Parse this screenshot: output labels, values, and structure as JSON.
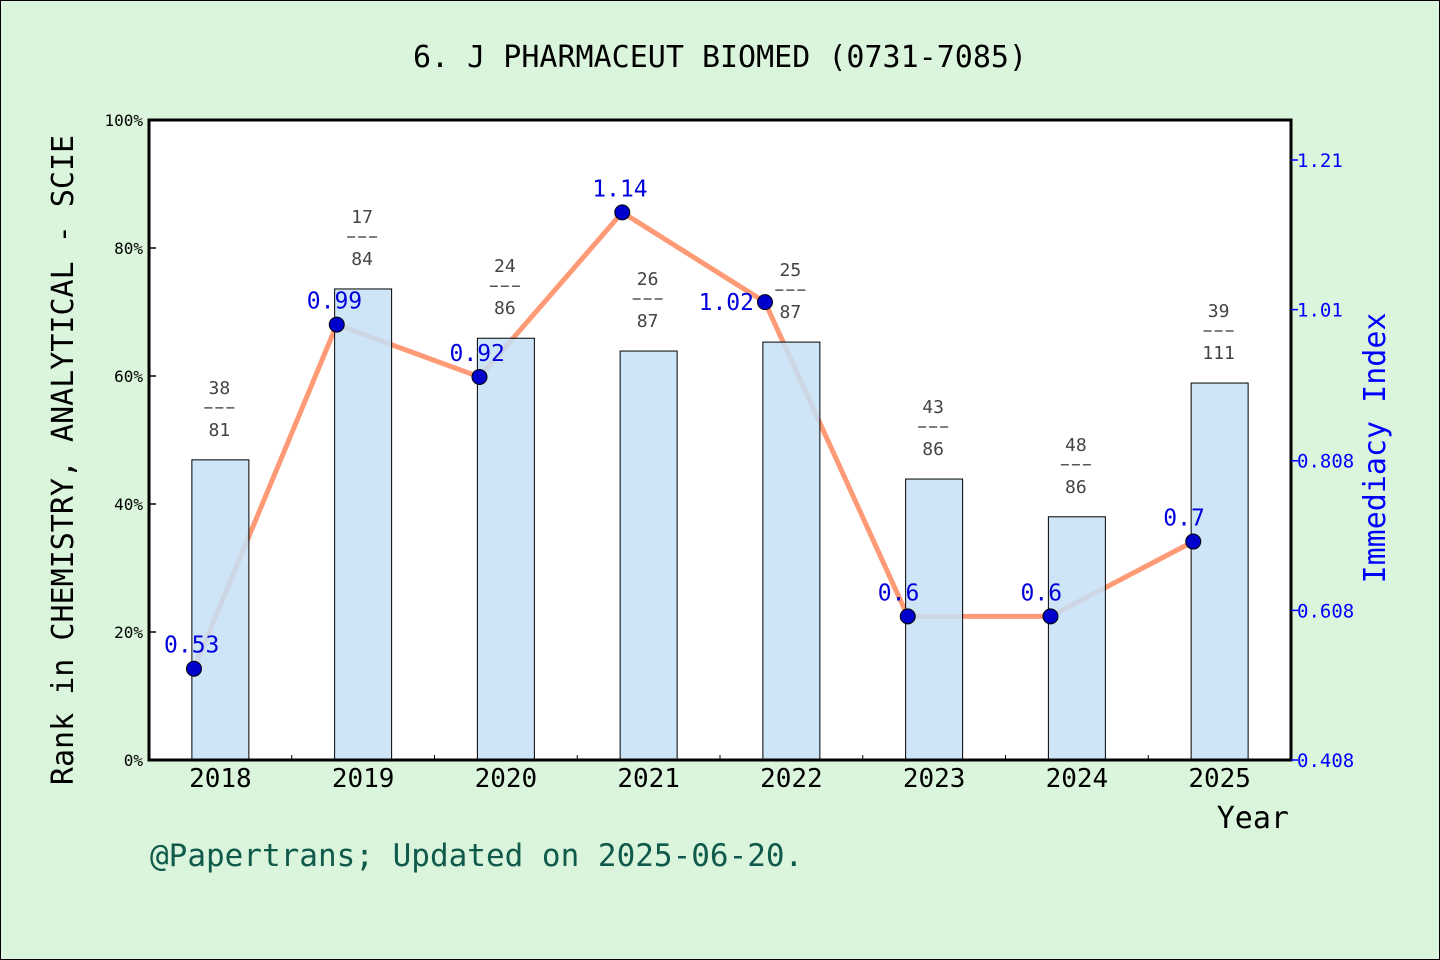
{
  "chart_data": {
    "type": "bar+line",
    "title": "6. J PHARMACEUT BIOMED (0731-7085)",
    "xlabel": "Year",
    "ylabel": "Rank in CHEMISTRY, ANALYTICAL - SCIE",
    "ylabel_right": "Immediacy Index",
    "categories": [
      "2018",
      "2019",
      "2020",
      "2021",
      "2022",
      "2023",
      "2024",
      "2025"
    ],
    "ylim": [
      0,
      100
    ],
    "yticks": [
      "0%",
      "20%",
      "40%",
      "60%",
      "80%",
      "100%"
    ],
    "ylim_right": [
      0.408,
      1.21
    ],
    "yticks_right": [
      "0.408",
      "0.608",
      "0.808",
      "1.01",
      "1.21"
    ],
    "bars": {
      "values_percent": [
        46.9,
        73.6,
        65.9,
        63.9,
        65.3,
        43.9,
        38.0,
        58.9
      ],
      "ranks": [
        "38",
        "17",
        "24",
        "26",
        "25",
        "43",
        "48",
        "39"
      ],
      "totals": [
        "81",
        "84",
        "86",
        "87",
        "87",
        "86",
        "86",
        "111"
      ],
      "color": "#c5e0f7"
    },
    "line": {
      "values": [
        0.53,
        0.99,
        0.92,
        1.14,
        1.02,
        0.6,
        0.6,
        0.7
      ],
      "labels": [
        "0.53",
        "0.99",
        "0.92",
        "1.14",
        "1.02",
        "0.6",
        "0.6",
        "0.7"
      ],
      "color": "#ff9a76",
      "marker_color": "#0000cc"
    },
    "grid": false,
    "footer": "@Papertrans; Updated on 2025-06-20."
  }
}
